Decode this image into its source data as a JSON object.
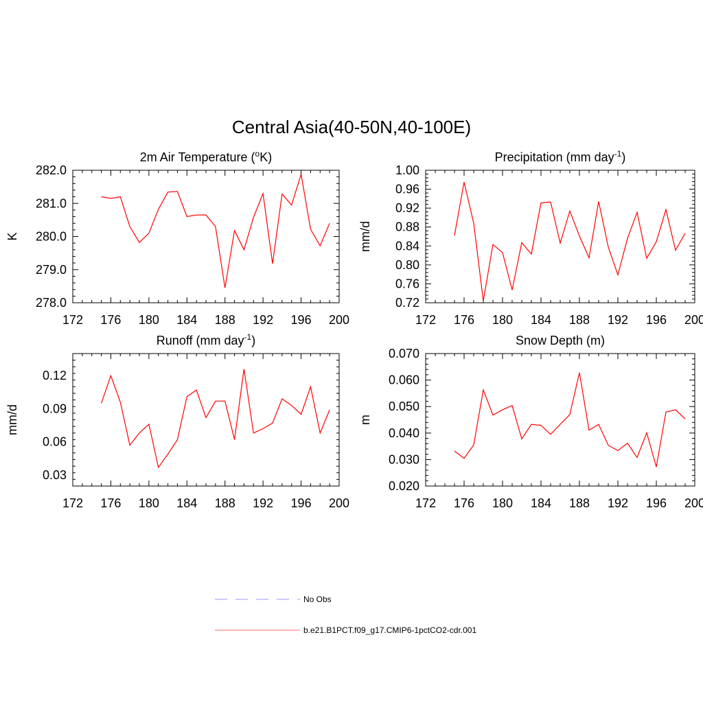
{
  "figure": {
    "title": "Central Asia(40-50N,40-100E)"
  },
  "legend": {
    "items": [
      {
        "label": "No Obs",
        "color": "#9999ff",
        "style": "dashed"
      },
      {
        "label": "b.e21.B1PCT.f09_g17.CMIP6-1pctCO2-cdr.001",
        "color": "#ff6666",
        "style": "solid"
      }
    ]
  },
  "chart_data": [
    {
      "type": "line",
      "title": "2m Air Temperature (",
      "title_sup": "o",
      "title_post": "K)",
      "ylabel": "K",
      "xlim": [
        172,
        200
      ],
      "ylim": [
        278.0,
        282.0
      ],
      "xticks": [
        "172",
        "176",
        "180",
        "184",
        "188",
        "192",
        "196",
        "200"
      ],
      "yticks": [
        "278.0",
        "279.0",
        "280.0",
        "281.0",
        "282.0"
      ],
      "series": [
        {
          "color": "#ff0000",
          "x": [
            175,
            176,
            177,
            178,
            179,
            180,
            181,
            182,
            183,
            184,
            185,
            186,
            187,
            188,
            189,
            190,
            191,
            192,
            193,
            194,
            195,
            196,
            197,
            198,
            199
          ],
          "values": [
            281.2,
            281.15,
            281.2,
            280.3,
            279.82,
            280.1,
            280.82,
            281.34,
            281.36,
            280.6,
            280.65,
            280.65,
            280.3,
            278.45,
            280.18,
            279.6,
            280.58,
            281.3,
            279.18,
            281.28,
            280.95,
            281.88,
            280.22,
            279.72,
            280.4
          ]
        }
      ]
    },
    {
      "type": "line",
      "title": "Precipitation (mm day",
      "title_sup": "-1",
      "title_post": ")",
      "ylabel": "mm/d",
      "xlim": [
        172,
        200
      ],
      "ylim": [
        0.72,
        1.0
      ],
      "xticks": [
        "172",
        "176",
        "180",
        "184",
        "188",
        "192",
        "196",
        "200"
      ],
      "yticks": [
        "0.72",
        "0.76",
        "0.80",
        "0.84",
        "0.88",
        "0.92",
        "0.96",
        "1.00"
      ],
      "series": [
        {
          "color": "#ff0000",
          "x": [
            175,
            176,
            177,
            178,
            179,
            180,
            181,
            182,
            183,
            184,
            185,
            186,
            187,
            188,
            189,
            190,
            191,
            192,
            193,
            194,
            195,
            196,
            197,
            198,
            199
          ],
          "values": [
            0.862,
            0.975,
            0.888,
            0.724,
            0.843,
            0.826,
            0.747,
            0.847,
            0.823,
            0.931,
            0.933,
            0.846,
            0.914,
            0.861,
            0.815,
            0.934,
            0.838,
            0.779,
            0.856,
            0.911,
            0.814,
            0.849,
            0.917,
            0.831,
            0.867
          ]
        }
      ]
    },
    {
      "type": "line",
      "title": "Runoff (mm day",
      "title_sup": "-1",
      "title_post": ")",
      "ylabel": "mm/d",
      "xlim": [
        172,
        200
      ],
      "ylim": [
        0.02,
        0.14
      ],
      "xticks": [
        "172",
        "176",
        "180",
        "184",
        "188",
        "192",
        "196",
        "200"
      ],
      "yticks": [
        "0.03",
        "0.06",
        "0.09",
        "0.12"
      ],
      "series": [
        {
          "color": "#ff0000",
          "x": [
            175,
            176,
            177,
            178,
            179,
            180,
            181,
            182,
            183,
            184,
            185,
            186,
            187,
            188,
            189,
            190,
            191,
            192,
            193,
            194,
            195,
            196,
            197,
            198,
            199
          ],
          "values": [
            0.095,
            0.12,
            0.096,
            0.057,
            0.068,
            0.076,
            0.037,
            0.049,
            0.062,
            0.101,
            0.107,
            0.082,
            0.097,
            0.097,
            0.062,
            0.126,
            0.068,
            0.072,
            0.077,
            0.099,
            0.093,
            0.085,
            0.11,
            0.068,
            0.089
          ]
        }
      ]
    },
    {
      "type": "line",
      "title": "Snow Depth (m)",
      "title_sup": "",
      "title_post": "",
      "ylabel": "m",
      "xlim": [
        172,
        200
      ],
      "ylim": [
        0.02,
        0.07
      ],
      "xticks": [
        "172",
        "176",
        "180",
        "184",
        "188",
        "192",
        "196",
        "200"
      ],
      "yticks": [
        "0.020",
        "0.030",
        "0.040",
        "0.050",
        "0.060",
        "0.070"
      ],
      "series": [
        {
          "color": "#ff0000",
          "x": [
            175,
            176,
            177,
            178,
            179,
            180,
            181,
            182,
            183,
            184,
            185,
            186,
            187,
            188,
            189,
            190,
            191,
            192,
            193,
            194,
            195,
            196,
            197,
            198,
            199
          ],
          "values": [
            0.0332,
            0.0305,
            0.0355,
            0.0563,
            0.0468,
            0.0488,
            0.0504,
            0.0378,
            0.0433,
            0.0429,
            0.0395,
            0.0433,
            0.047,
            0.0628,
            0.0411,
            0.0433,
            0.0354,
            0.0334,
            0.0362,
            0.0308,
            0.0401,
            0.0272,
            0.0479,
            0.0488,
            0.0453
          ]
        }
      ]
    }
  ]
}
